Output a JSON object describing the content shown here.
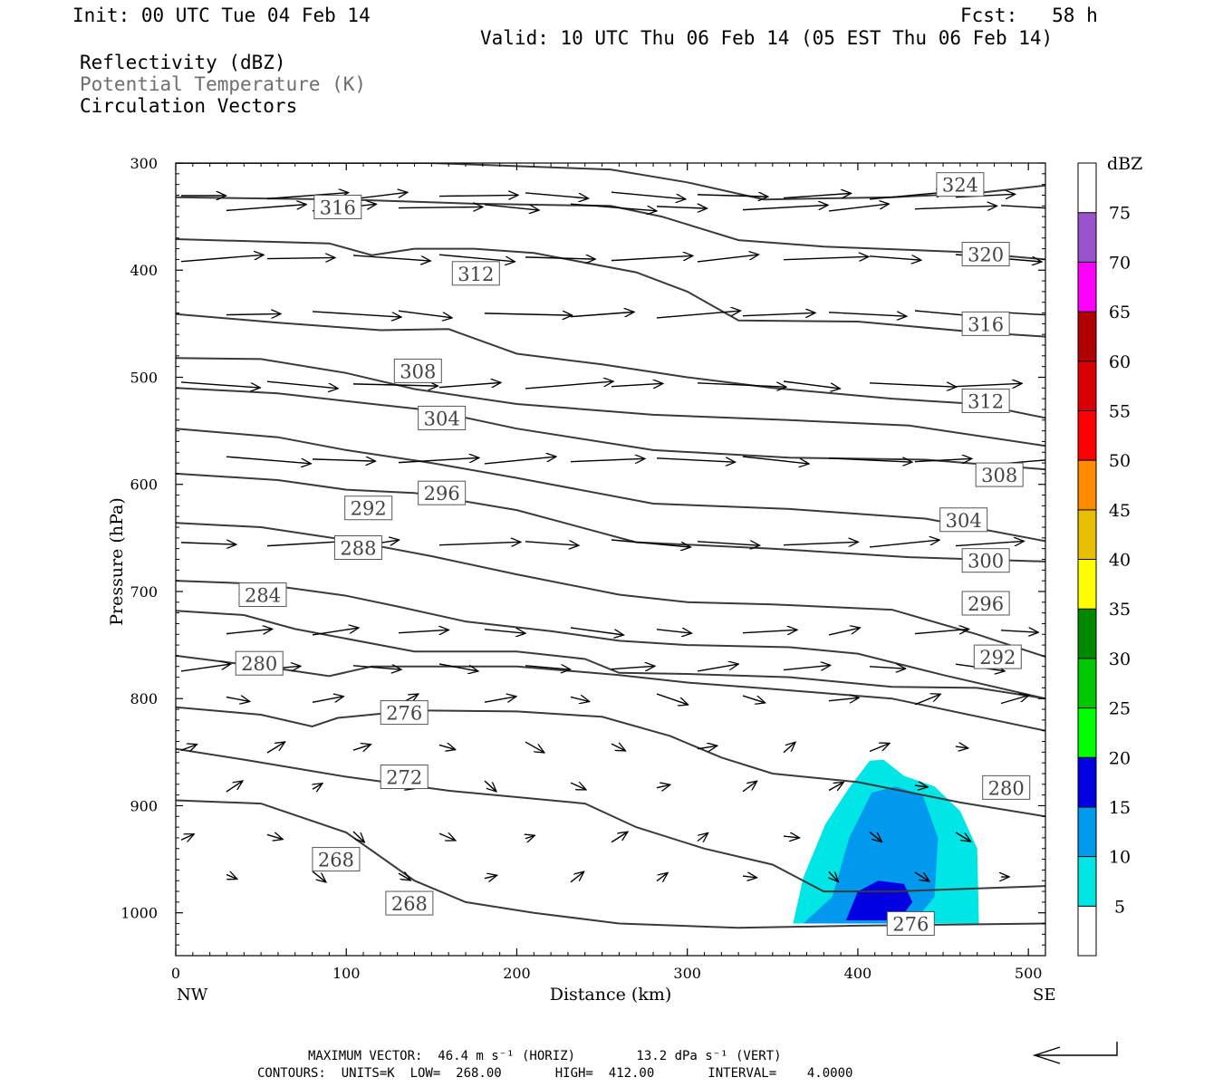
{
  "header": {
    "init": "Init: 00 UTC Tue 04 Feb 14",
    "fcst": "Fcst:   58 h",
    "valid": "Valid: 10 UTC Thu 06 Feb 14 (05 EST Thu 06 Feb 14)"
  },
  "legend_lines": [
    "Reflectivity (dBZ)",
    "Potential Temperature (K)",
    "Circulation Vectors"
  ],
  "footer": {
    "max_vector": "MAXIMUM VECTOR:  46.4 m s⁻¹ (HORIZ)        13.2 dPa s⁻¹ (VERT)",
    "contours": "CONTOURS:  UNITS=K  LOW=  268.00       HIGH=  412.00       INTERVAL=    4.0000"
  },
  "chart_data": {
    "type": "cross-section contour",
    "xlabel": "Distance (km)",
    "ylabel": "Pressure (hPa)",
    "xlim": [
      0,
      510
    ],
    "ylim": [
      1040,
      300
    ],
    "x_ticks": [
      0,
      100,
      200,
      300,
      400,
      500
    ],
    "y_ticks": [
      300,
      400,
      500,
      600,
      700,
      800,
      900,
      1000
    ],
    "x_end_labels": {
      "left": "NW",
      "right": "SE"
    },
    "colorbar": {
      "title": "dBZ",
      "levels": [
        5,
        10,
        15,
        20,
        25,
        30,
        35,
        40,
        45,
        50,
        55,
        60,
        65,
        70,
        75
      ],
      "colors": [
        "#ffffff",
        "#00e5e5",
        "#0099ee",
        "#0000e0",
        "#00ff00",
        "#00c800",
        "#008800",
        "#ffff00",
        "#e6c000",
        "#ff8c00",
        "#ff0000",
        "#d80000",
        "#b00000",
        "#ff00ff",
        "#9955cc",
        "#ffffff"
      ]
    },
    "theta_contours": [
      {
        "value": 324,
        "points": [
          [
            0,
            300
          ],
          [
            150,
            300
          ],
          [
            255,
            306
          ],
          [
            300,
            318
          ],
          [
            345,
            334
          ],
          [
            420,
            332
          ],
          [
            470,
            328
          ],
          [
            510,
            321
          ]
        ],
        "labels": [
          [
            460,
            320
          ]
        ]
      },
      {
        "value": 320,
        "points": [
          [
            0,
            332
          ],
          [
            100,
            334
          ],
          [
            175,
            338
          ],
          [
            255,
            340
          ],
          [
            285,
            350
          ],
          [
            330,
            372
          ],
          [
            380,
            378
          ],
          [
            460,
            383
          ],
          [
            510,
            390
          ]
        ],
        "labels": [
          [
            475,
            385
          ]
        ]
      },
      {
        "value": 316,
        "points": [
          [
            0,
            371
          ],
          [
            90,
            375
          ],
          [
            115,
            386
          ],
          [
            140,
            380
          ],
          [
            175,
            380
          ],
          [
            210,
            384
          ],
          [
            270,
            402
          ],
          [
            300,
            420
          ],
          [
            330,
            447
          ],
          [
            400,
            448
          ],
          [
            470,
            458
          ],
          [
            510,
            462
          ]
        ],
        "labels": [
          [
            95,
            341
          ],
          [
            475,
            450
          ]
        ]
      },
      {
        "value": 312,
        "points": [
          [
            0,
            441
          ],
          [
            60,
            449
          ],
          [
            120,
            456
          ],
          [
            160,
            455
          ],
          [
            200,
            478
          ],
          [
            250,
            488
          ],
          [
            300,
            500
          ],
          [
            350,
            510
          ],
          [
            420,
            520
          ],
          [
            470,
            525
          ],
          [
            510,
            538
          ]
        ],
        "labels": [
          [
            176,
            403
          ],
          [
            475,
            522
          ]
        ]
      },
      {
        "value": 308,
        "points": [
          [
            0,
            482
          ],
          [
            50,
            483
          ],
          [
            100,
            496
          ],
          [
            140,
            511
          ],
          [
            200,
            525
          ],
          [
            280,
            535
          ],
          [
            360,
            540
          ],
          [
            430,
            545
          ],
          [
            510,
            564
          ]
        ],
        "labels": [
          [
            142,
            494
          ],
          [
            483,
            591
          ]
        ]
      },
      {
        "value": 304,
        "points": [
          [
            0,
            510
          ],
          [
            60,
            515
          ],
          [
            110,
            524
          ],
          [
            150,
            531
          ],
          [
            200,
            548
          ],
          [
            280,
            568
          ],
          [
            360,
            575
          ],
          [
            440,
            577
          ],
          [
            510,
            586
          ]
        ],
        "labels": [
          [
            156,
            538
          ],
          [
            462,
            633
          ]
        ]
      },
      {
        "value": 300,
        "points": [
          [
            0,
            548
          ],
          [
            60,
            556
          ],
          [
            100,
            568
          ],
          [
            150,
            580
          ],
          [
            200,
            594
          ],
          [
            280,
            618
          ],
          [
            360,
            623
          ],
          [
            440,
            632
          ],
          [
            510,
            653
          ]
        ],
        "labels": [
          [
            475,
            671
          ]
        ]
      },
      {
        "value": 296,
        "points": [
          [
            0,
            590
          ],
          [
            60,
            596
          ],
          [
            100,
            605
          ],
          [
            140,
            608
          ],
          [
            200,
            624
          ],
          [
            270,
            654
          ],
          [
            350,
            660
          ],
          [
            430,
            668
          ],
          [
            510,
            672
          ]
        ],
        "labels": [
          [
            156,
            608
          ],
          [
            475,
            711
          ]
        ]
      },
      {
        "value": 292,
        "points": [
          [
            0,
            636
          ],
          [
            50,
            640
          ],
          [
            100,
            652
          ],
          [
            150,
            667
          ],
          [
            200,
            684
          ],
          [
            260,
            703
          ],
          [
            300,
            710
          ],
          [
            350,
            712
          ],
          [
            420,
            717
          ],
          [
            470,
            740
          ],
          [
            510,
            761
          ]
        ],
        "labels": [
          [
            113,
            622
          ],
          [
            482,
            761
          ]
        ]
      },
      {
        "value": 288,
        "points": [
          [
            0,
            690
          ],
          [
            50,
            693
          ],
          [
            100,
            704
          ],
          [
            130,
            714
          ],
          [
            170,
            728
          ],
          [
            220,
            737
          ],
          [
            260,
            746
          ],
          [
            300,
            750
          ],
          [
            360,
            752
          ],
          [
            400,
            758
          ],
          [
            450,
            778
          ],
          [
            510,
            800
          ]
        ],
        "labels": [
          [
            107,
            659
          ]
        ]
      },
      {
        "value": 284,
        "points": [
          [
            0,
            718
          ],
          [
            40,
            722
          ],
          [
            70,
            735
          ],
          [
            90,
            741
          ],
          [
            140,
            756
          ],
          [
            200,
            756
          ],
          [
            240,
            763
          ],
          [
            260,
            776
          ],
          [
            300,
            777
          ],
          [
            360,
            780
          ],
          [
            420,
            789
          ],
          [
            470,
            790
          ],
          [
            510,
            800
          ]
        ],
        "labels": [
          [
            51,
            703
          ]
        ]
      },
      {
        "value": 280,
        "points": [
          [
            0,
            760
          ],
          [
            60,
            772
          ],
          [
            90,
            779
          ],
          [
            115,
            770
          ],
          [
            160,
            770
          ],
          [
            200,
            770
          ],
          [
            260,
            778
          ],
          [
            300,
            785
          ],
          [
            350,
            791
          ],
          [
            420,
            800
          ],
          [
            510,
            830
          ]
        ],
        "labels": [
          [
            49,
            767
          ],
          [
            487,
            883
          ]
        ]
      },
      {
        "value": 276,
        "points": [
          [
            0,
            808
          ],
          [
            50,
            815
          ],
          [
            80,
            826
          ],
          [
            95,
            818
          ],
          [
            140,
            811
          ],
          [
            200,
            812
          ],
          [
            250,
            817
          ],
          [
            290,
            835
          ],
          [
            320,
            855
          ],
          [
            350,
            870
          ],
          [
            400,
            878
          ],
          [
            460,
            897
          ],
          [
            510,
            910
          ]
        ],
        "labels": [
          [
            134,
            813
          ],
          [
            431,
            1010
          ]
        ]
      },
      {
        "value": 272,
        "points": [
          [
            0,
            847
          ],
          [
            40,
            857
          ],
          [
            100,
            873
          ],
          [
            160,
            886
          ],
          [
            240,
            898
          ],
          [
            270,
            920
          ],
          [
            310,
            940
          ],
          [
            350,
            955
          ],
          [
            380,
            980
          ],
          [
            420,
            980
          ],
          [
            510,
            975
          ]
        ],
        "labels": [
          [
            134,
            873
          ]
        ]
      },
      {
        "value": 268,
        "points": [
          [
            0,
            895
          ],
          [
            50,
            898
          ],
          [
            100,
            925
          ],
          [
            140,
            970
          ],
          [
            170,
            990
          ],
          [
            210,
            1000
          ],
          [
            260,
            1010
          ],
          [
            330,
            1014
          ],
          [
            400,
            1012
          ],
          [
            510,
            1010
          ]
        ],
        "labels": [
          [
            94,
            950
          ],
          [
            137,
            991
          ]
        ]
      }
    ],
    "reflectivity_areas": [
      {
        "dbz": 5,
        "points": [
          [
            362,
            1010
          ],
          [
            368,
            967
          ],
          [
            381,
            917
          ],
          [
            395,
            883
          ],
          [
            407,
            858
          ],
          [
            415,
            857
          ],
          [
            427,
            872
          ],
          [
            445,
            882
          ],
          [
            460,
            905
          ],
          [
            470,
            940
          ],
          [
            471,
            1010
          ]
        ]
      },
      {
        "dbz": 10,
        "points": [
          [
            368,
            1010
          ],
          [
            385,
            985
          ],
          [
            395,
            930
          ],
          [
            408,
            888
          ],
          [
            422,
            882
          ],
          [
            438,
            890
          ],
          [
            447,
            930
          ],
          [
            445,
            985
          ],
          [
            432,
            1010
          ]
        ]
      },
      {
        "dbz": 15,
        "points": [
          [
            393,
            1007
          ],
          [
            400,
            980
          ],
          [
            412,
            970
          ],
          [
            427,
            973
          ],
          [
            432,
            990
          ],
          [
            424,
            1007
          ]
        ]
      }
    ]
  }
}
